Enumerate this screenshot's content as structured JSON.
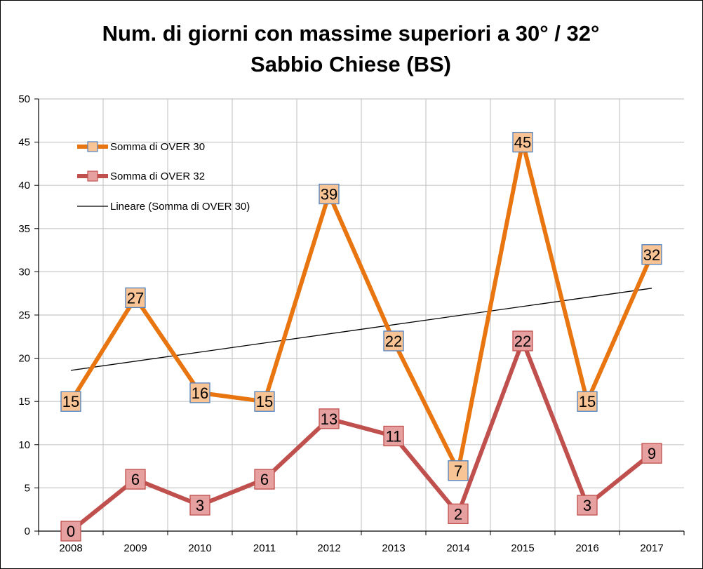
{
  "chart_data": {
    "type": "line",
    "title": "Num. di giorni con massime superiori a 30° / 32°",
    "subtitle": "Sabbio Chiese (BS)",
    "xlabel": "",
    "ylabel": "",
    "categories": [
      "2008",
      "2009",
      "2010",
      "2011",
      "2012",
      "2013",
      "2014",
      "2015",
      "2016",
      "2017"
    ],
    "ylim": [
      0,
      50
    ],
    "ytick_step": 5,
    "grid": true,
    "legend_position": "top-left",
    "series": [
      {
        "name": "Somma di OVER 30",
        "values": [
          15,
          27,
          16,
          15,
          39,
          22,
          7,
          45,
          15,
          32
        ],
        "line_color": "#E8750F",
        "marker_fill": "#F8C496",
        "marker_stroke": "#4F81BD",
        "data_labels": true
      },
      {
        "name": "Somma di OVER 32",
        "values": [
          0,
          6,
          3,
          6,
          13,
          11,
          2,
          22,
          3,
          9
        ],
        "line_color": "#C0504D",
        "marker_fill": "#E6A0A0",
        "marker_stroke": "#C0504D",
        "data_labels": true
      }
    ],
    "trendline": {
      "name": "Lineare (Somma di OVER 30)",
      "of_series": "Somma di OVER 30",
      "kind": "linear",
      "start_value": 18.6,
      "end_value": 28.1,
      "color": "#000000"
    }
  }
}
